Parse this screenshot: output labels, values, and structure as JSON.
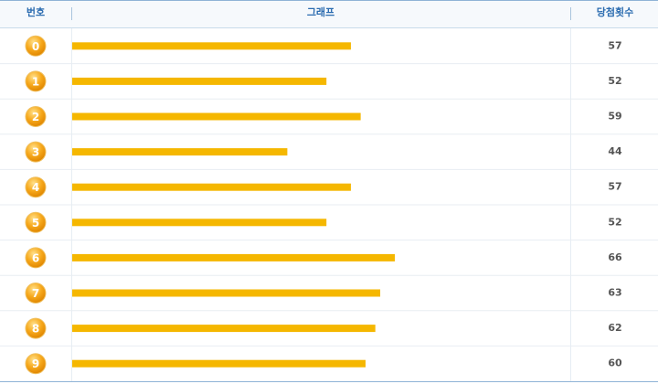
{
  "chart_data": {
    "type": "bar",
    "orientation": "horizontal",
    "columns": [
      "번호",
      "그래프",
      "당첨횟수"
    ],
    "categories": [
      "0",
      "1",
      "2",
      "3",
      "4",
      "5",
      "6",
      "7",
      "8",
      "9"
    ],
    "values": [
      57,
      52,
      59,
      44,
      57,
      52,
      66,
      63,
      62,
      60
    ],
    "color": "#f5b700"
  }
}
